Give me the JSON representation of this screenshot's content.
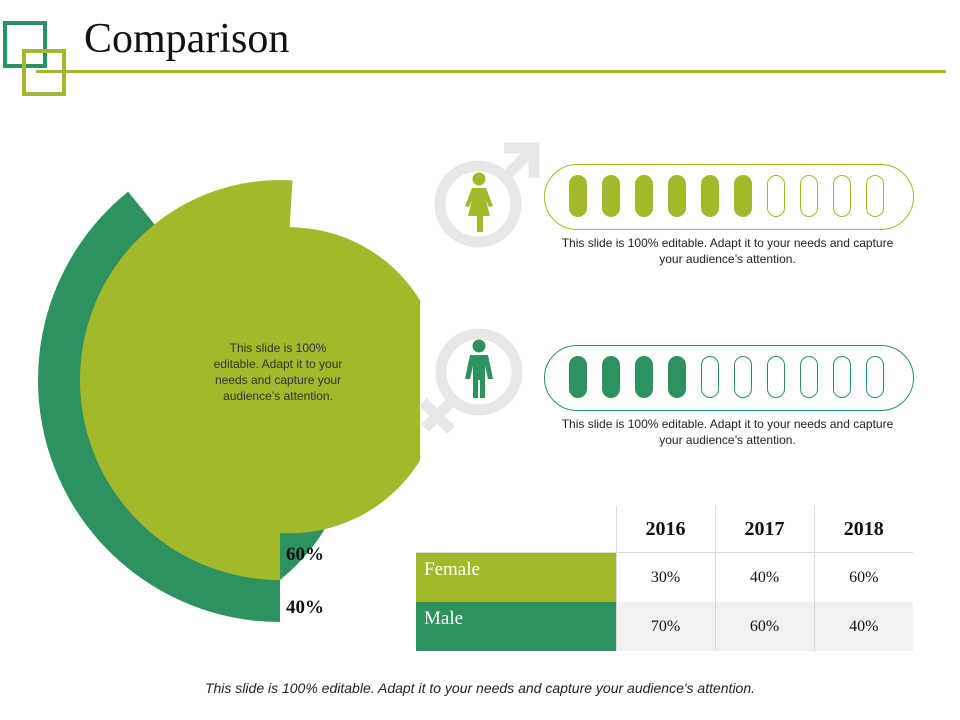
{
  "header": {
    "title": "Comparison"
  },
  "colors": {
    "olive": "#a3b92c",
    "green": "#2e9160",
    "icon_gray": "#e7e7e7",
    "light_row": "#f1f1f1",
    "title_rule": "#a3b92c"
  },
  "chart_data": {
    "type": "pie",
    "title": "",
    "series": [
      {
        "name": "Female",
        "value": 60,
        "label": "60%"
      },
      {
        "name": "Male",
        "value": 40,
        "label": "40%"
      }
    ],
    "note": "This slide is 100% editable. Adapt it to your needs and capture your audience’s attention."
  },
  "gender_rows": [
    {
      "name": "female",
      "filled": 6,
      "total": 10,
      "note": "This slide is 100% editable. Adapt it to your needs and capture your audience’s attention."
    },
    {
      "name": "male",
      "filled": 4,
      "total": 10,
      "note": "This slide is 100% editable. Adapt it to your needs and capture your audience’s attention."
    }
  ],
  "table": {
    "years": [
      "2016",
      "2017",
      "2018"
    ],
    "rows": [
      {
        "label": "Female",
        "values": [
          "30%",
          "40%",
          "60%"
        ]
      },
      {
        "label": "Male",
        "values": [
          "70%",
          "60%",
          "40%"
        ]
      }
    ]
  },
  "footer": {
    "text": "This slide is 100% editable. Adapt it to your needs and capture your audience's attention."
  }
}
